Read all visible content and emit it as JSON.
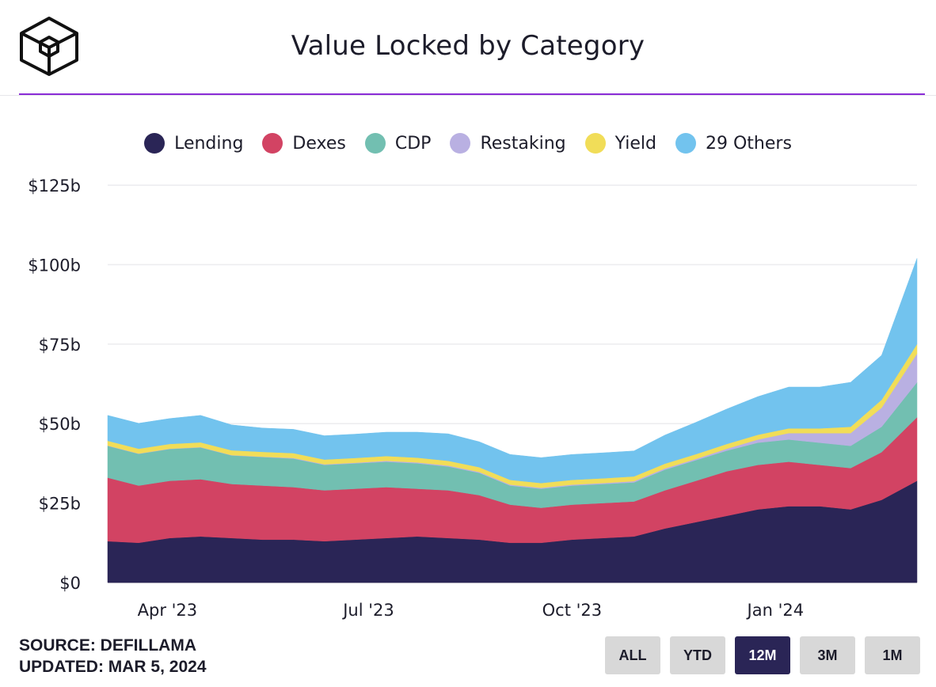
{
  "header": {
    "title": "Value Locked by Category",
    "logo_icon": "cube-logo-icon",
    "accent_color": "#8a2bd6"
  },
  "footer": {
    "source": "SOURCE: DEFILLAMA",
    "updated": "UPDATED: MAR 5, 2024"
  },
  "range_buttons": [
    {
      "label": "ALL",
      "active": false
    },
    {
      "label": "YTD",
      "active": false
    },
    {
      "label": "12M",
      "active": true
    },
    {
      "label": "3M",
      "active": false
    },
    {
      "label": "1M",
      "active": false
    }
  ],
  "chart_data": {
    "type": "area",
    "stacked": true,
    "title": "Value Locked by Category",
    "xlabel": "",
    "ylabel": "",
    "ylim": [
      0,
      125
    ],
    "y_ticks": [
      0,
      25,
      50,
      75,
      100,
      125
    ],
    "y_tick_labels": [
      "$0",
      "$25b",
      "$50b",
      "$75b",
      "$100b",
      "$125b"
    ],
    "x_tick_labels": [
      {
        "label": "Apr '23",
        "date": "2023-04-01"
      },
      {
        "label": "Jul '23",
        "date": "2023-07-01"
      },
      {
        "label": "Oct '23",
        "date": "2023-10-01"
      },
      {
        "label": "Jan '24",
        "date": "2024-01-01"
      }
    ],
    "x_range": [
      "2023-03-05",
      "2024-03-05"
    ],
    "grid": true,
    "legend_position": "top-center",
    "x": [
      "2023-03-05",
      "2023-03-19",
      "2023-04-02",
      "2023-04-16",
      "2023-04-30",
      "2023-05-14",
      "2023-05-28",
      "2023-06-11",
      "2023-06-25",
      "2023-07-09",
      "2023-07-23",
      "2023-08-06",
      "2023-08-20",
      "2023-09-03",
      "2023-09-17",
      "2023-10-01",
      "2023-10-15",
      "2023-10-29",
      "2023-11-12",
      "2023-11-26",
      "2023-12-10",
      "2023-12-24",
      "2024-01-07",
      "2024-01-21",
      "2024-02-04",
      "2024-02-18",
      "2024-03-05"
    ],
    "series": [
      {
        "name": "Lending",
        "color": "#2a2556",
        "values": [
          13,
          12.5,
          14,
          14.5,
          14,
          13.5,
          13.5,
          13,
          13.5,
          14,
          14.5,
          14,
          13.5,
          12.5,
          12.5,
          13.5,
          14,
          14.5,
          17,
          19,
          21,
          23,
          24,
          24,
          23,
          26,
          32
        ]
      },
      {
        "name": "Dexes",
        "color": "#d24363",
        "values": [
          20,
          18,
          18,
          18,
          17,
          17,
          16.5,
          16,
          16,
          16,
          15,
          15,
          14,
          12,
          11,
          11,
          11,
          11,
          12,
          13,
          14,
          14,
          14,
          13,
          13,
          15,
          20
        ]
      },
      {
        "name": "CDP",
        "color": "#72bfb1",
        "values": [
          10,
          10,
          10,
          10,
          9,
          9,
          9,
          8,
          8,
          8,
          8,
          7.5,
          7,
          6,
          6,
          6,
          6,
          6,
          6.5,
          6.5,
          6.5,
          7,
          7,
          7,
          7,
          8,
          11
        ]
      },
      {
        "name": "Restaking",
        "color": "#b9b0e2",
        "values": [
          0.1,
          0.1,
          0.1,
          0.1,
          0.1,
          0.1,
          0.2,
          0.2,
          0.2,
          0.3,
          0.3,
          0.3,
          0.3,
          0.3,
          0.3,
          0.3,
          0.3,
          0.4,
          0.4,
          0.4,
          0.6,
          1,
          2,
          3,
          4,
          6,
          9
        ]
      },
      {
        "name": "Yield",
        "color": "#f1dd58",
        "values": [
          1.5,
          1.5,
          1.5,
          1.5,
          1.5,
          1.5,
          1.5,
          1.5,
          1.5,
          1.5,
          1.5,
          1.5,
          1.5,
          1.5,
          1.5,
          1.5,
          1.5,
          1.5,
          1.5,
          1.5,
          1.5,
          1.5,
          1.5,
          1.5,
          2,
          2.5,
          3
        ]
      },
      {
        "name": "29 Others",
        "color": "#72c3ee",
        "values": [
          8,
          8,
          8,
          8.5,
          8,
          7.5,
          7.5,
          7.5,
          7.5,
          7.5,
          8,
          8.5,
          8,
          8,
          8,
          8,
          8,
          8,
          9,
          10,
          11,
          12,
          13,
          13,
          14,
          14,
          27
        ]
      }
    ]
  }
}
